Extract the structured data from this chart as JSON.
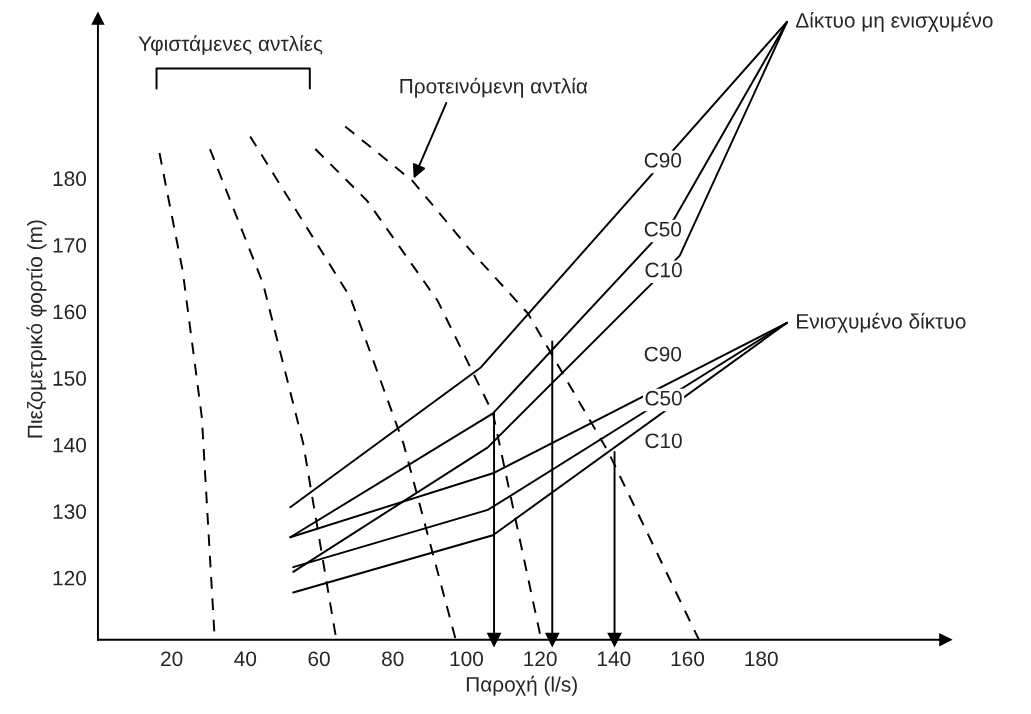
{
  "chart_data": {
    "type": "line",
    "xlabel": "Παροχή (l/s)",
    "ylabel": "Πιεζομετρικό φορτίο (m)",
    "xlim": [
      0,
      230
    ],
    "ylim": [
      110.7,
      204
    ],
    "xticks": [
      20,
      40,
      60,
      80,
      100,
      120,
      140,
      160,
      180
    ],
    "yticks": [
      120,
      130,
      140,
      150,
      160,
      170,
      180
    ],
    "grid": false,
    "legend": false,
    "series": [
      {
        "line_style": "dashed",
        "color": "#000000",
        "x": [
          16.7,
          23.0,
          28.2,
          31.7
        ],
        "values": [
          183.8,
          166.1,
          144.1,
          110.7
        ]
      },
      {
        "line_style": "dashed",
        "color": "#000000",
        "x": [
          30.4,
          44.8,
          55.7,
          64.7
        ],
        "values": [
          184.4,
          164.2,
          140.2,
          110.7
        ]
      },
      {
        "line_style": "dashed",
        "color": "#000000",
        "x": [
          41.3,
          68.5,
          82.9,
          97.1
        ],
        "values": [
          186.3,
          162.1,
          140.2,
          110.7
        ]
      },
      {
        "line_style": "dashed",
        "color": "#000000",
        "x": [
          59.0,
          73.1,
          92.2,
          107.2,
          120.3
        ],
        "values": [
          184.4,
          176.6,
          161.6,
          144.7,
          110.7
        ]
      },
      {
        "line_style": "dashed",
        "color": "#000000",
        "x": [
          67.1,
          85.4,
          101.2,
          116.7,
          138.5,
          163.1
        ],
        "values": [
          187.8,
          179.6,
          169.1,
          159.7,
          138.9,
          110.7
        ]
      },
      {
        "line_style": "solid",
        "color": "#000000",
        "name": "C90",
        "x": [
          52.2,
          103.9,
          187.0
        ],
        "values": [
          130.6,
          151.6,
          203.5
        ]
      },
      {
        "line_style": "solid",
        "color": "#000000",
        "name": "C50",
        "x": [
          52.2,
          107.2,
          156.5,
          187.0
        ],
        "values": [
          126.1,
          144.7,
          174.0,
          203.5
        ]
      },
      {
        "line_style": "solid",
        "color": "#000000",
        "name": "C10",
        "x": [
          53.0,
          105.8,
          157.9,
          187.0
        ],
        "values": [
          120.9,
          139.6,
          168.4,
          203.5
        ]
      },
      {
        "line_style": "solid",
        "color": "#000000",
        "name": "C90",
        "x": [
          52.2,
          107.2,
          187.0
        ],
        "values": [
          126.1,
          135.7,
          158.3
        ]
      },
      {
        "line_style": "solid",
        "color": "#000000",
        "name": "C50",
        "x": [
          53.0,
          105.8,
          187.0
        ],
        "values": [
          121.6,
          130.2,
          158.3
        ]
      },
      {
        "line_style": "solid",
        "color": "#000000",
        "name": "C10",
        "x": [
          53.0,
          107.2,
          187.0
        ],
        "values": [
          117.8,
          126.4,
          158.3
        ]
      },
      {
        "line_style": "solid",
        "color": "#000000",
        "marker": "triangle",
        "x": [
          107.5,
          107.5
        ],
        "values": [
          144.7,
          110.7
        ]
      },
      {
        "line_style": "solid",
        "color": "#000000",
        "marker": "triangle",
        "x": [
          123.3,
          123.3
        ],
        "values": [
          155.5,
          110.7
        ]
      },
      {
        "line_style": "solid",
        "color": "#000000",
        "marker": "triangle",
        "x": [
          140.2,
          140.2
        ],
        "values": [
          138.9,
          110.7
        ]
      }
    ],
    "annotations": [
      "Υφιστάμενες αντλίες",
      {
        "text": "Προτεινόμενη αντλία",
        "x": 85.4,
        "y": 179.6
      },
      "Δίκτυο μη ενισχυμένο",
      "Ενισχυμένο δίκτυο"
    ]
  }
}
